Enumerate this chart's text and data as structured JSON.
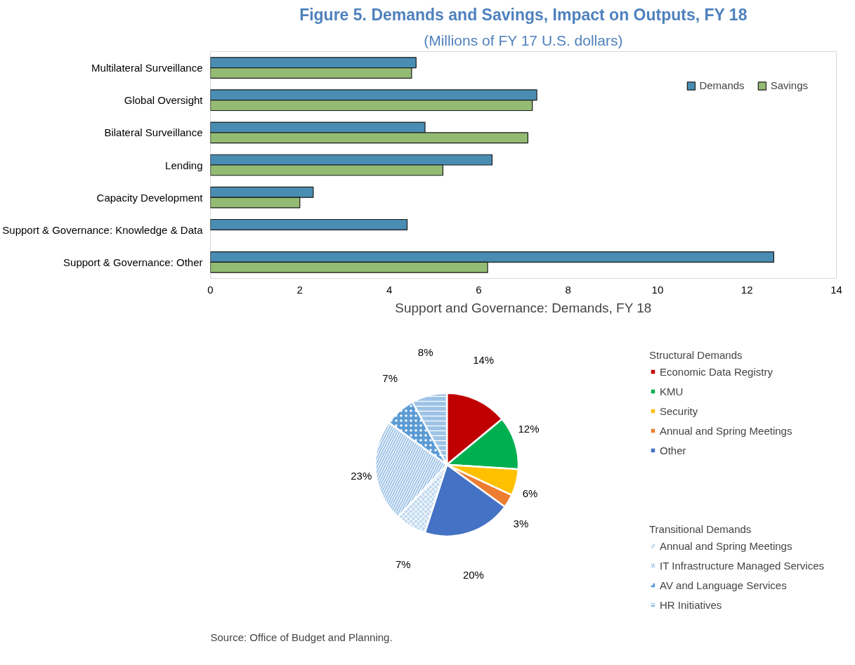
{
  "chart_data": [
    {
      "type": "bar",
      "orientation": "horizontal",
      "title": "Figure 5. Demands and Savings, Impact on Outputs, FY 18",
      "subtitle": "(Millions of FY 17 U.S. dollars)",
      "categories": [
        "Multilateral Surveillance",
        "Global Oversight",
        "Bilateral Surveillance",
        "Lending",
        "Capacity Development",
        "Support & Governance: Knowledge & Data",
        "Support & Governance: Other"
      ],
      "series": [
        {
          "name": "Demands",
          "color": "#4a8db3",
          "values": [
            4.6,
            7.3,
            4.8,
            6.3,
            2.3,
            4.4,
            12.6
          ]
        },
        {
          "name": "Savings",
          "color": "#93bb74",
          "values": [
            4.5,
            7.2,
            7.1,
            5.2,
            2.0,
            null,
            6.2
          ]
        }
      ],
      "xlim": [
        0,
        14
      ],
      "xticks": [
        0,
        2,
        4,
        6,
        8,
        10,
        12,
        14
      ],
      "grid": false,
      "legend": "top right"
    },
    {
      "type": "pie",
      "title": "Support and Governance: Demands, FY 18",
      "categories": [
        "Economic Data Registry",
        "KMU",
        "Security",
        "Annual and Spring Meetings",
        "Other",
        "Annual and Spring Meetings",
        "IT Infrastructure Managed Services",
        "AV and Language Services",
        "HR Initiatives"
      ],
      "values": [
        14,
        12,
        6,
        3,
        20,
        7,
        23,
        7,
        8
      ],
      "colors": [
        "#c00000",
        "#00b050",
        "#ffc000",
        "#ed7d31",
        "#4472c4",
        "#bdd7ee",
        "#9dc3e6",
        "#5b9bd5",
        "#9dc3e6"
      ],
      "value_labels": [
        "14%",
        "12%",
        "6%",
        "3%",
        "20%",
        "7%",
        "23%",
        "7%",
        "8%"
      ],
      "legend": "right",
      "annotations": [
        "Structural Demands",
        "Transitional Demands",
        "Source: Office of Budget and Planning."
      ]
    }
  ]
}
